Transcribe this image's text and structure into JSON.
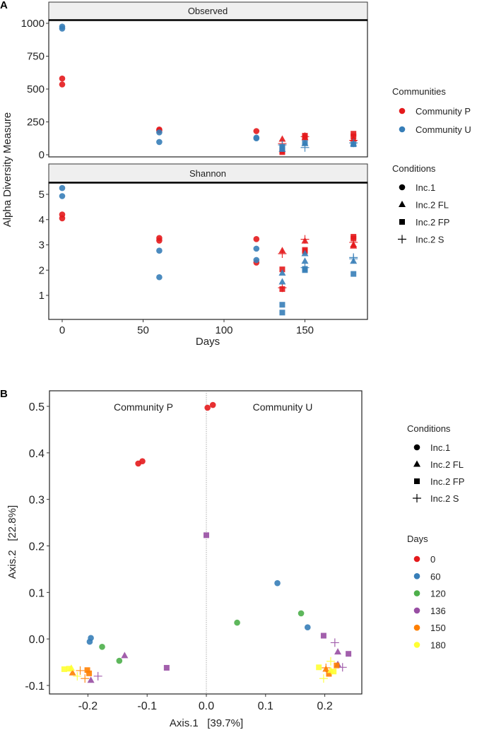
{
  "colors": {
    "community": {
      "Community P": "#e41a1c",
      "Community U": "#377eb8"
    },
    "days": {
      "0": "#e41a1c",
      "60": "#377eb8",
      "120": "#4daf4a",
      "136": "#984ea3",
      "150": "#ff7f00",
      "180": "#ffff33"
    },
    "strip_fill": "#efefef"
  },
  "chart_data": [
    {
      "panel_label": "A",
      "type": "scatter",
      "xlabel": "Days",
      "ylabel": "Alpha Diversity Measure",
      "xticks": [
        0,
        50,
        100,
        150
      ],
      "grid": false,
      "legend_placement": "right",
      "legends": {
        "communities": {
          "title": "Communities",
          "items": [
            "Community P",
            "Community U"
          ]
        },
        "conditions": {
          "title": "Conditions",
          "items": [
            {
              "label": "Inc.1",
              "shape": "circle"
            },
            {
              "label": "Inc.2 FL",
              "shape": "triangle"
            },
            {
              "label": "Inc.2 FP",
              "shape": "square"
            },
            {
              "label": "Inc.2 S",
              "shape": "plus"
            }
          ]
        }
      },
      "facets": [
        {
          "title": "Observed",
          "yticks": [
            0,
            250,
            500,
            750,
            1000
          ],
          "points": [
            {
              "day": 0,
              "value": 580,
              "community": "Community P",
              "condition": "Inc.1"
            },
            {
              "day": 0,
              "value": 535,
              "community": "Community P",
              "condition": "Inc.1"
            },
            {
              "day": 0,
              "value": 975,
              "community": "Community U",
              "condition": "Inc.1"
            },
            {
              "day": 0,
              "value": 960,
              "community": "Community U",
              "condition": "Inc.1"
            },
            {
              "day": 60,
              "value": 192,
              "community": "Community P",
              "condition": "Inc.1"
            },
            {
              "day": 60,
              "value": 185,
              "community": "Community P",
              "condition": "Inc.1"
            },
            {
              "day": 60,
              "value": 170,
              "community": "Community U",
              "condition": "Inc.1"
            },
            {
              "day": 60,
              "value": 97,
              "community": "Community U",
              "condition": "Inc.1"
            },
            {
              "day": 120,
              "value": 180,
              "community": "Community P",
              "condition": "Inc.1"
            },
            {
              "day": 120,
              "value": 130,
              "community": "Community U",
              "condition": "Inc.1"
            },
            {
              "day": 120,
              "value": 125,
              "community": "Community U",
              "condition": "Inc.1"
            },
            {
              "day": 136,
              "value": 118,
              "community": "Community P",
              "condition": "Inc.2 FL"
            },
            {
              "day": 136,
              "value": 20,
              "community": "Community P",
              "condition": "Inc.2 FP"
            },
            {
              "day": 136,
              "value": 30,
              "community": "Community P",
              "condition": "Inc.2 FP"
            },
            {
              "day": 136,
              "value": 85,
              "community": "Community P",
              "condition": "Inc.2 S"
            },
            {
              "day": 136,
              "value": 60,
              "community": "Community U",
              "condition": "Inc.2 FP"
            },
            {
              "day": 136,
              "value": 50,
              "community": "Community U",
              "condition": "Inc.2 FP"
            },
            {
              "day": 136,
              "value": 40,
              "community": "Community U",
              "condition": "Inc.2 FL"
            },
            {
              "day": 136,
              "value": 75,
              "community": "Community U",
              "condition": "Inc.2 S"
            },
            {
              "day": 150,
              "value": 145,
              "community": "Community P",
              "condition": "Inc.2 FP"
            },
            {
              "day": 150,
              "value": 135,
              "community": "Community P",
              "condition": "Inc.2 FP"
            },
            {
              "day": 150,
              "value": 130,
              "community": "Community P",
              "condition": "Inc.2 FL"
            },
            {
              "day": 150,
              "value": 138,
              "community": "Community P",
              "condition": "Inc.2 S"
            },
            {
              "day": 150,
              "value": 85,
              "community": "Community U",
              "condition": "Inc.2 FL"
            },
            {
              "day": 150,
              "value": 90,
              "community": "Community U",
              "condition": "Inc.2 FP"
            },
            {
              "day": 150,
              "value": 55,
              "community": "Community U",
              "condition": "Inc.2 S"
            },
            {
              "day": 180,
              "value": 160,
              "community": "Community P",
              "condition": "Inc.2 FP"
            },
            {
              "day": 180,
              "value": 140,
              "community": "Community P",
              "condition": "Inc.2 FP"
            },
            {
              "day": 180,
              "value": 120,
              "community": "Community P",
              "condition": "Inc.2 FL"
            },
            {
              "day": 180,
              "value": 110,
              "community": "Community P",
              "condition": "Inc.2 S"
            },
            {
              "day": 180,
              "value": 80,
              "community": "Community U",
              "condition": "Inc.2 FP"
            },
            {
              "day": 180,
              "value": 82,
              "community": "Community U",
              "condition": "Inc.2 FL"
            },
            {
              "day": 180,
              "value": 90,
              "community": "Community U",
              "condition": "Inc.2 S"
            }
          ]
        },
        {
          "title": "Shannon",
          "yticks": [
            1,
            2,
            3,
            4,
            5
          ],
          "points": [
            {
              "day": 0,
              "value": 5.25,
              "community": "Community U",
              "condition": "Inc.1"
            },
            {
              "day": 0,
              "value": 4.93,
              "community": "Community U",
              "condition": "Inc.1"
            },
            {
              "day": 0,
              "value": 4.2,
              "community": "Community P",
              "condition": "Inc.1"
            },
            {
              "day": 0,
              "value": 4.05,
              "community": "Community P",
              "condition": "Inc.1"
            },
            {
              "day": 60,
              "value": 3.27,
              "community": "Community P",
              "condition": "Inc.1"
            },
            {
              "day": 60,
              "value": 3.17,
              "community": "Community P",
              "condition": "Inc.1"
            },
            {
              "day": 60,
              "value": 2.77,
              "community": "Community U",
              "condition": "Inc.1"
            },
            {
              "day": 60,
              "value": 1.72,
              "community": "Community U",
              "condition": "Inc.1"
            },
            {
              "day": 120,
              "value": 3.23,
              "community": "Community P",
              "condition": "Inc.1"
            },
            {
              "day": 120,
              "value": 2.3,
              "community": "Community P",
              "condition": "Inc.1"
            },
            {
              "day": 120,
              "value": 2.85,
              "community": "Community U",
              "condition": "Inc.1"
            },
            {
              "day": 120,
              "value": 2.4,
              "community": "Community U",
              "condition": "Inc.1"
            },
            {
              "day": 136,
              "value": 2.77,
              "community": "Community P",
              "condition": "Inc.2 FL"
            },
            {
              "day": 136,
              "value": 2.65,
              "community": "Community P",
              "condition": "Inc.2 S"
            },
            {
              "day": 136,
              "value": 2.03,
              "community": "Community P",
              "condition": "Inc.2 FP"
            },
            {
              "day": 136,
              "value": 1.25,
              "community": "Community P",
              "condition": "Inc.2 FP"
            },
            {
              "day": 136,
              "value": 1.3,
              "community": "Community P",
              "condition": "Inc.2 S"
            },
            {
              "day": 136,
              "value": 1.88,
              "community": "Community U",
              "condition": "Inc.2 FL"
            },
            {
              "day": 136,
              "value": 1.53,
              "community": "Community U",
              "condition": "Inc.2 FL"
            },
            {
              "day": 136,
              "value": 0.63,
              "community": "Community U",
              "condition": "Inc.2 FP"
            },
            {
              "day": 136,
              "value": 0.32,
              "community": "Community U",
              "condition": "Inc.2 FP"
            },
            {
              "day": 150,
              "value": 3.15,
              "community": "Community P",
              "condition": "Inc.2 FL"
            },
            {
              "day": 150,
              "value": 3.22,
              "community": "Community P",
              "condition": "Inc.2 S"
            },
            {
              "day": 150,
              "value": 2.8,
              "community": "Community P",
              "condition": "Inc.2 FP"
            },
            {
              "day": 150,
              "value": 2.75,
              "community": "Community P",
              "condition": "Inc.2 FP"
            },
            {
              "day": 150,
              "value": 2.65,
              "community": "Community U",
              "condition": "Inc.2 FL"
            },
            {
              "day": 150,
              "value": 2.35,
              "community": "Community U",
              "condition": "Inc.2 FL"
            },
            {
              "day": 150,
              "value": 2.0,
              "community": "Community U",
              "condition": "Inc.2 FP"
            },
            {
              "day": 150,
              "value": 2.05,
              "community": "Community U",
              "condition": "Inc.2 FP"
            },
            {
              "day": 150,
              "value": 2.1,
              "community": "Community U",
              "condition": "Inc.2 S"
            },
            {
              "day": 180,
              "value": 3.32,
              "community": "Community P",
              "condition": "Inc.2 FP"
            },
            {
              "day": 180,
              "value": 3.25,
              "community": "Community P",
              "condition": "Inc.2 FP"
            },
            {
              "day": 180,
              "value": 3.0,
              "community": "Community P",
              "condition": "Inc.2 FL"
            },
            {
              "day": 180,
              "value": 2.95,
              "community": "Community P",
              "condition": "Inc.2 FL"
            },
            {
              "day": 180,
              "value": 3.1,
              "community": "Community P",
              "condition": "Inc.2 S"
            },
            {
              "day": 180,
              "value": 2.5,
              "community": "Community U",
              "condition": "Inc.2 S"
            },
            {
              "day": 180,
              "value": 2.45,
              "community": "Community U",
              "condition": "Inc.2 S"
            },
            {
              "day": 180,
              "value": 2.35,
              "community": "Community U",
              "condition": "Inc.2 FL"
            },
            {
              "day": 180,
              "value": 1.85,
              "community": "Community U",
              "condition": "Inc.2 FP"
            }
          ]
        }
      ]
    },
    {
      "panel_label": "B",
      "type": "scatter",
      "xlabel": "Axis.1   [39.7%]",
      "ylabel": "Axis.2   [22.8%]",
      "xticks": [
        -0.2,
        -0.1,
        0.0,
        0.1,
        0.2
      ],
      "yticks": [
        -0.1,
        0.0,
        0.1,
        0.2,
        0.3,
        0.4,
        0.5
      ],
      "tick_labels_x": [
        "-0.2",
        "-0.1",
        "0.0",
        "0.1",
        "0.2"
      ],
      "tick_labels_y": [
        "-0.1",
        "0.0",
        "0.1",
        "0.2",
        "0.3",
        "0.4",
        "0.5"
      ],
      "xlim": [
        -0.264,
        0.263
      ],
      "ylim": [
        -0.118,
        0.533
      ],
      "grid": false,
      "reference_line_x": 0,
      "annotations": [
        "Community P",
        "Community U"
      ],
      "legend_placement": "right",
      "legends": {
        "conditions": {
          "title": "Conditions",
          "items": [
            {
              "label": "Inc.1",
              "shape": "circle"
            },
            {
              "label": "Inc.2 FL",
              "shape": "triangle"
            },
            {
              "label": "Inc.2 FP",
              "shape": "square"
            },
            {
              "label": "Inc.2 S",
              "shape": "plus"
            }
          ]
        },
        "days": {
          "title": "Days",
          "items": [
            "0",
            "60",
            "120",
            "136",
            "150",
            "180"
          ]
        }
      },
      "points": [
        {
          "x": 0.002,
          "y": 0.497,
          "day": "0",
          "condition": "Inc.1"
        },
        {
          "x": 0.011,
          "y": 0.503,
          "day": "0",
          "condition": "Inc.1"
        },
        {
          "x": -0.115,
          "y": 0.377,
          "day": "0",
          "condition": "Inc.1"
        },
        {
          "x": -0.108,
          "y": 0.382,
          "day": "0",
          "condition": "Inc.1"
        },
        {
          "x": 0.12,
          "y": 0.12,
          "day": "60",
          "condition": "Inc.1"
        },
        {
          "x": 0.171,
          "y": 0.025,
          "day": "60",
          "condition": "Inc.1"
        },
        {
          "x": -0.197,
          "y": -0.006,
          "day": "60",
          "condition": "Inc.1"
        },
        {
          "x": -0.195,
          "y": 0.002,
          "day": "60",
          "condition": "Inc.1"
        },
        {
          "x": 0.052,
          "y": 0.035,
          "day": "120",
          "condition": "Inc.1"
        },
        {
          "x": 0.16,
          "y": 0.055,
          "day": "120",
          "condition": "Inc.1"
        },
        {
          "x": -0.176,
          "y": -0.017,
          "day": "120",
          "condition": "Inc.1"
        },
        {
          "x": -0.147,
          "y": -0.047,
          "day": "120",
          "condition": "Inc.1"
        },
        {
          "x": 0.0,
          "y": 0.223,
          "day": "136",
          "condition": "Inc.2 FP"
        },
        {
          "x": -0.067,
          "y": -0.062,
          "day": "136",
          "condition": "Inc.2 FP"
        },
        {
          "x": 0.198,
          "y": 0.007,
          "day": "136",
          "condition": "Inc.2 FP"
        },
        {
          "x": 0.24,
          "y": -0.032,
          "day": "136",
          "condition": "Inc.2 FP"
        },
        {
          "x": -0.138,
          "y": -0.036,
          "day": "136",
          "condition": "Inc.2 FL"
        },
        {
          "x": -0.195,
          "y": -0.089,
          "day": "136",
          "condition": "Inc.2 FL"
        },
        {
          "x": 0.222,
          "y": -0.028,
          "day": "136",
          "condition": "Inc.2 FL"
        },
        {
          "x": 0.222,
          "y": -0.055,
          "day": "136",
          "condition": "Inc.2 FL"
        },
        {
          "x": 0.217,
          "y": -0.008,
          "day": "136",
          "condition": "Inc.2 S"
        },
        {
          "x": -0.183,
          "y": -0.08,
          "day": "136",
          "condition": "Inc.2 S"
        },
        {
          "x": 0.23,
          "y": -0.061,
          "day": "136",
          "condition": "Inc.2 S"
        },
        {
          "x": -0.201,
          "y": -0.067,
          "day": "150",
          "condition": "Inc.2 FP"
        },
        {
          "x": -0.198,
          "y": -0.074,
          "day": "150",
          "condition": "Inc.2 FP"
        },
        {
          "x": 0.22,
          "y": -0.057,
          "day": "150",
          "condition": "Inc.2 FP"
        },
        {
          "x": 0.207,
          "y": -0.075,
          "day": "150",
          "condition": "Inc.2 FP"
        },
        {
          "x": -0.226,
          "y": -0.073,
          "day": "150",
          "condition": "Inc.2 FL"
        },
        {
          "x": 0.202,
          "y": -0.065,
          "day": "150",
          "condition": "Inc.2 FL"
        },
        {
          "x": -0.213,
          "y": -0.068,
          "day": "150",
          "condition": "Inc.2 S"
        },
        {
          "x": -0.205,
          "y": -0.085,
          "day": "150",
          "condition": "Inc.2 S"
        },
        {
          "x": 0.202,
          "y": -0.062,
          "day": "150",
          "condition": "Inc.2 S"
        },
        {
          "x": -0.24,
          "y": -0.065,
          "day": "180",
          "condition": "Inc.2 FP"
        },
        {
          "x": -0.232,
          "y": -0.064,
          "day": "180",
          "condition": "Inc.2 FP"
        },
        {
          "x": 0.19,
          "y": -0.061,
          "day": "180",
          "condition": "Inc.2 FP"
        },
        {
          "x": 0.215,
          "y": -0.07,
          "day": "180",
          "condition": "Inc.2 FP"
        },
        {
          "x": -0.228,
          "y": -0.063,
          "day": "180",
          "condition": "Inc.2 FL"
        },
        {
          "x": 0.21,
          "y": -0.068,
          "day": "180",
          "condition": "Inc.2 FL"
        },
        {
          "x": -0.218,
          "y": -0.08,
          "day": "180",
          "condition": "Inc.2 S"
        },
        {
          "x": 0.198,
          "y": -0.085,
          "day": "180",
          "condition": "Inc.2 S"
        },
        {
          "x": 0.21,
          "y": -0.048,
          "day": "180",
          "condition": "Inc.2 S"
        }
      ]
    }
  ]
}
